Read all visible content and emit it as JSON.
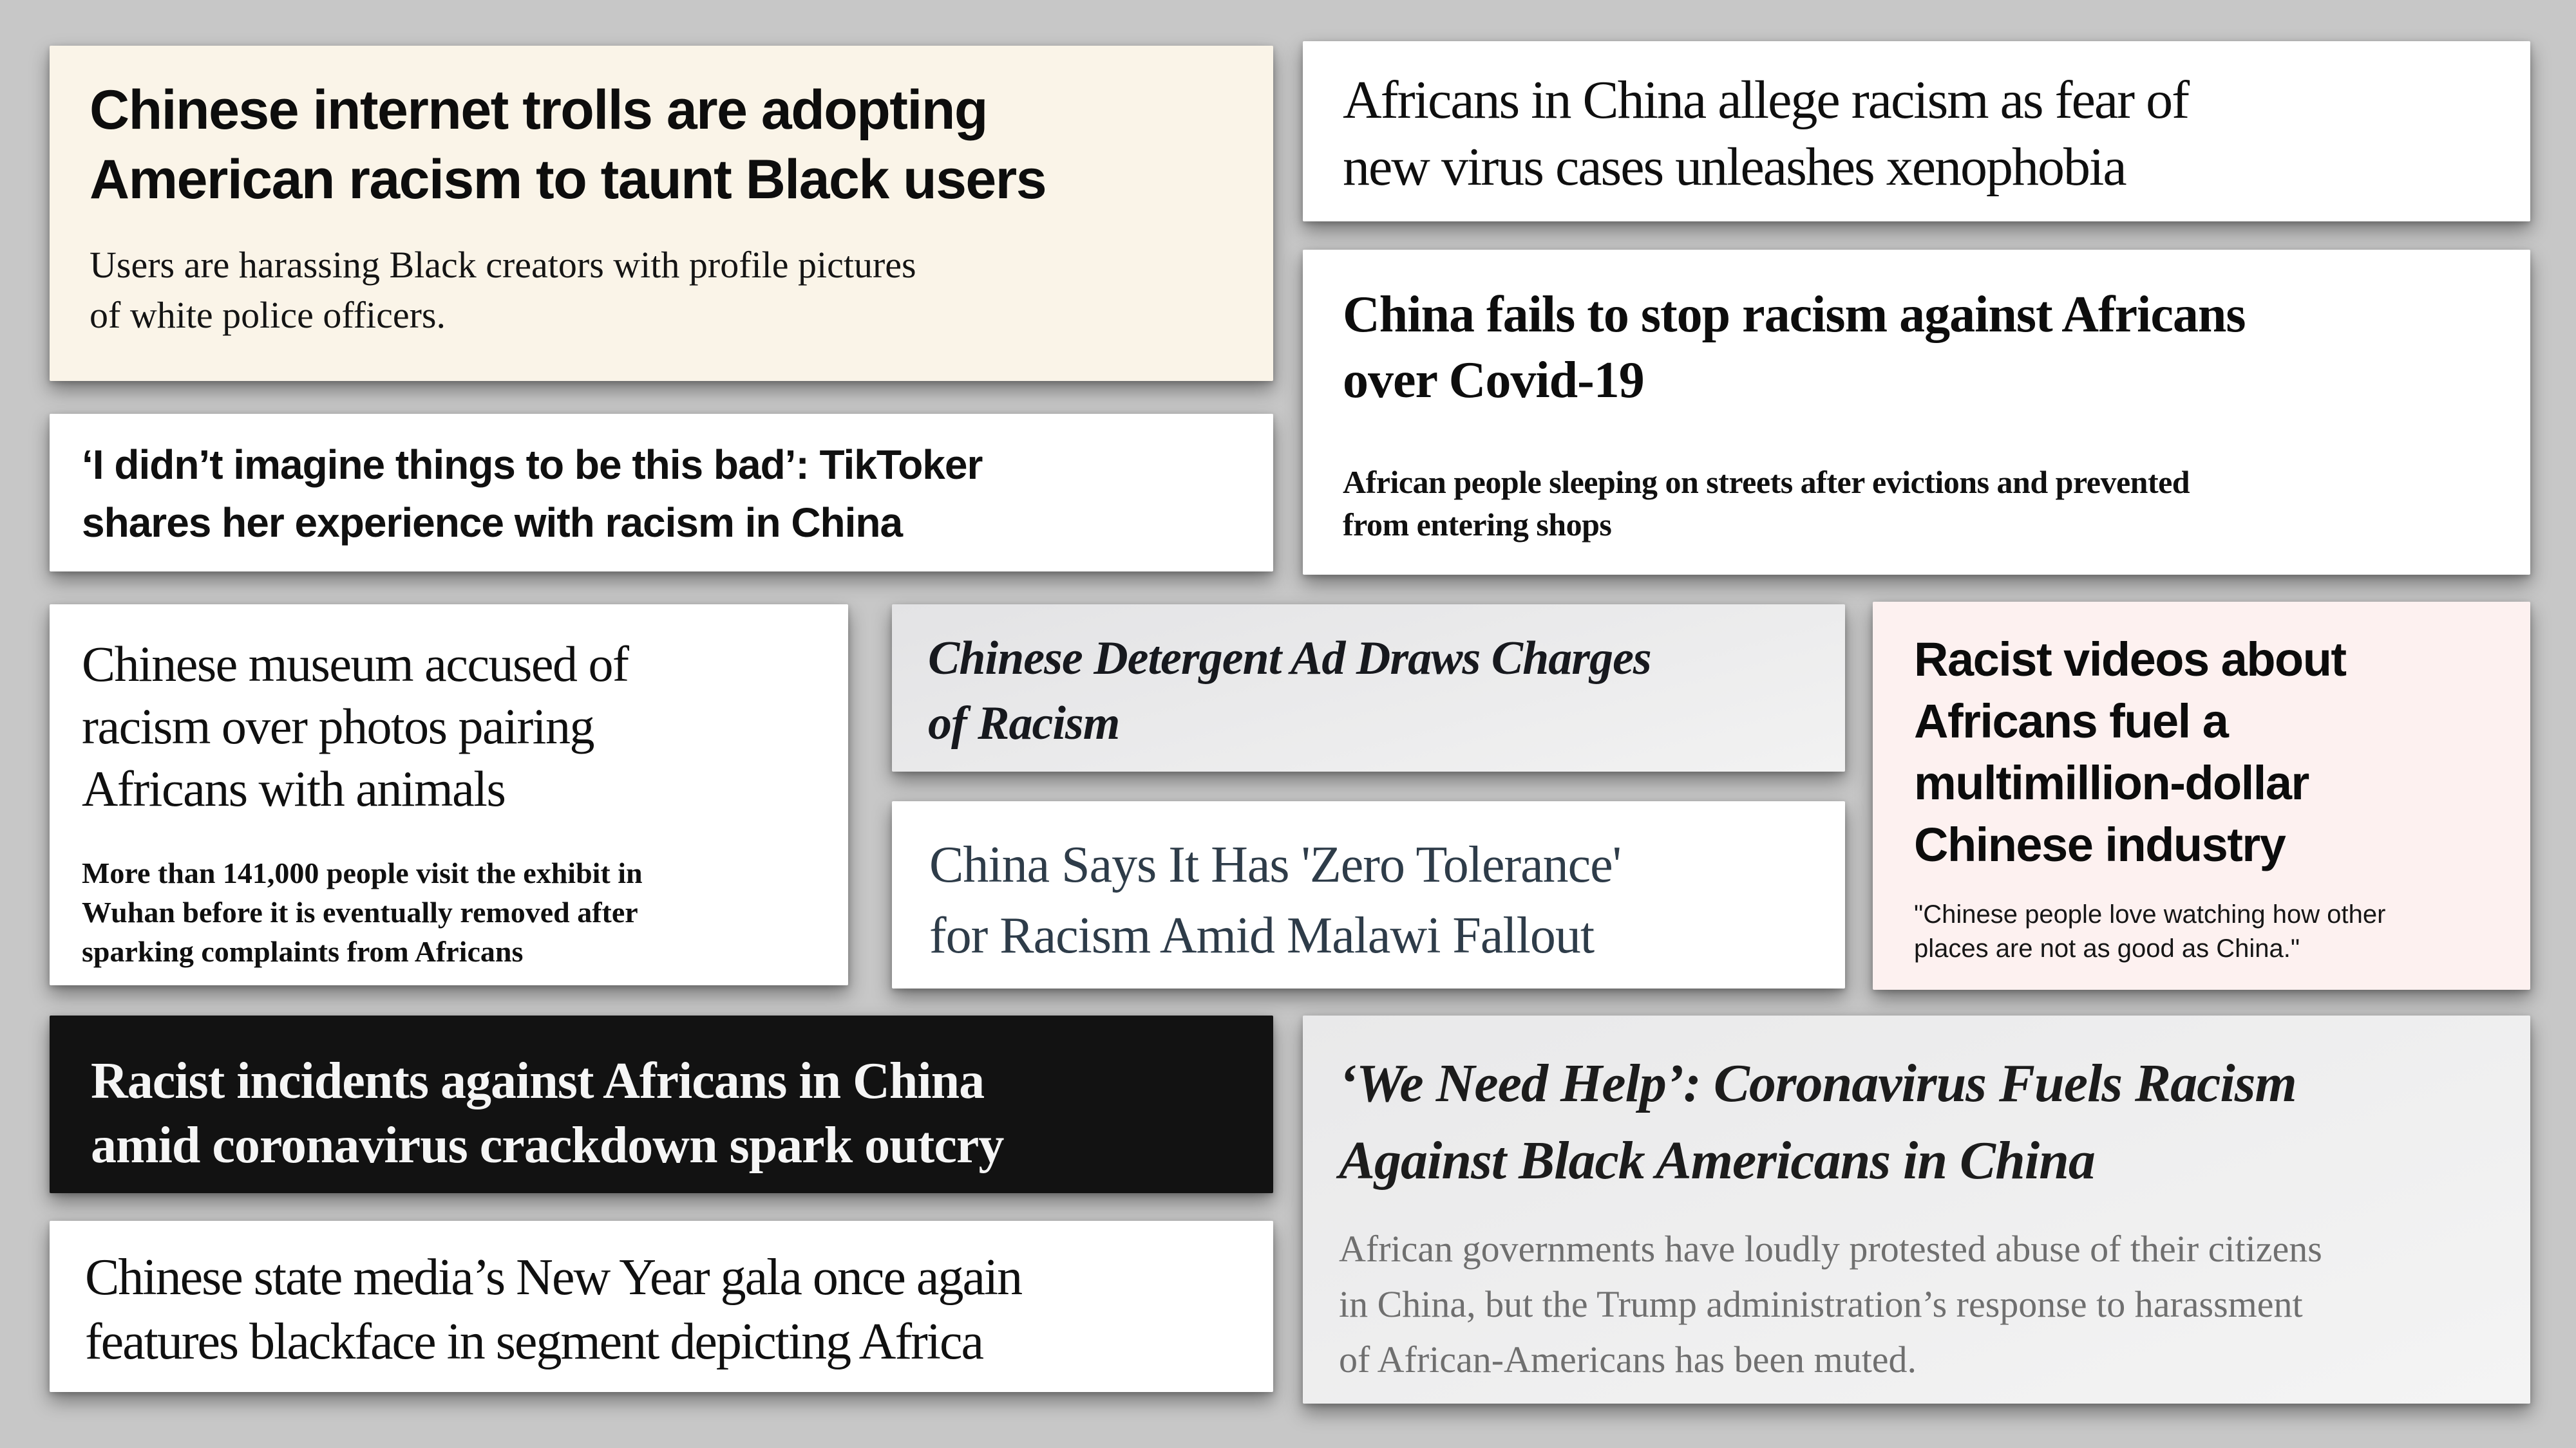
{
  "page": {
    "background": "#c7c7c7"
  },
  "colors": {
    "card_cream_bg": "#faf4e8",
    "card_white_bg": "#ffffff",
    "card_gray_gradient_top": "#e3e3e5",
    "card_gray_gradient_bottom": "#f4f4f4",
    "card_pink_bg": "#fdf1f0",
    "card_black_bg": "#121212",
    "headline_dark_text": "#0d0d0d",
    "headline_white_text": "#f5f5f5",
    "zero_tolerance_text": "#2e3c49",
    "muted_gray_sub_text": "#6f6f6f"
  },
  "cards": [
    {
      "name": "internet-trolls",
      "headline": [
        "Chinese internet trolls are adopting",
        "American racism to taunt Black users"
      ],
      "sub": [
        "Users are harassing Black creators with profile pictures",
        "of white police officers."
      ]
    },
    {
      "name": "tiktoker",
      "headline": [
        "‘I didn’t imagine things to be this bad’: TikToker",
        "shares her experience with racism in China"
      ]
    },
    {
      "name": "africans-allege-racism",
      "headline": [
        "Africans in China allege racism as fear of",
        "new virus cases unleashes xenophobia"
      ]
    },
    {
      "name": "china-fails-covid",
      "headline": [
        "China fails to stop racism against Africans",
        "over Covid-19"
      ],
      "sub": [
        "African people sleeping on streets after evictions and prevented",
        "from entering shops"
      ]
    },
    {
      "name": "museum-photos",
      "headline": [
        "Chinese museum accused of",
        "racism over photos pairing",
        "Africans with animals"
      ],
      "sub": [
        "More than 141,000 people visit the exhibit in",
        "Wuhan before it is eventually removed after",
        "sparking complaints from Africans"
      ]
    },
    {
      "name": "detergent-ad",
      "headline": [
        "Chinese Detergent Ad Draws Charges",
        "of Racism"
      ]
    },
    {
      "name": "zero-tolerance",
      "headline": [
        "China Says It Has 'Zero Tolerance'",
        "for Racism Amid Malawi Fallout"
      ]
    },
    {
      "name": "racist-videos-industry",
      "headline": [
        "Racist videos about",
        "Africans fuel a",
        "multimillion-dollar",
        "Chinese industry"
      ],
      "sub": [
        "\"Chinese people love watching how other",
        "places are not as good as China.\""
      ]
    },
    {
      "name": "incidents-outcry",
      "headline": [
        "Racist incidents against Africans in China",
        "amid coronavirus crackdown spark outcry"
      ]
    },
    {
      "name": "gala-blackface",
      "headline": [
        "Chinese state media’s New Year gala once again",
        "features blackface in segment depicting Africa"
      ]
    },
    {
      "name": "we-need-help",
      "headline": [
        "‘We Need Help’: Coronavirus Fuels Racism",
        "Against Black Americans in China"
      ],
      "sub": [
        "African governments have loudly protested abuse of their citizens",
        "in China, but the Trump administration’s response to harassment",
        "of African-Americans has been muted."
      ]
    }
  ]
}
